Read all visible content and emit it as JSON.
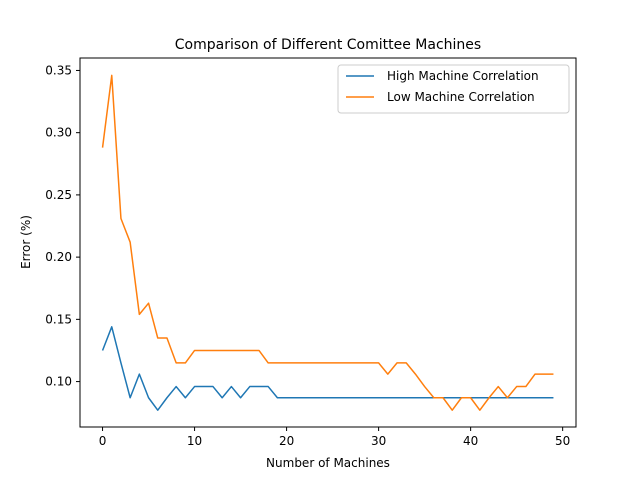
{
  "chart_data": {
    "type": "line",
    "title": "Comparison of Different Comittee Machines",
    "xlabel": "Number of Machines",
    "ylabel": "Error (%)",
    "xlim": [
      -2.45,
      51.45
    ],
    "ylim": [
      0.0635,
      0.36
    ],
    "xticks": [
      0,
      10,
      20,
      30,
      40,
      50
    ],
    "xtick_labels": [
      "0",
      "10",
      "20",
      "30",
      "40",
      "50"
    ],
    "yticks": [
      0.1,
      0.15,
      0.2,
      0.25,
      0.3,
      0.35
    ],
    "ytick_labels": [
      "0.10",
      "0.15",
      "0.20",
      "0.25",
      "0.30",
      "0.35"
    ],
    "legend_position": "top-right",
    "grid": false,
    "x": [
      0,
      1,
      2,
      3,
      4,
      5,
      6,
      7,
      8,
      9,
      10,
      11,
      12,
      13,
      14,
      15,
      16,
      17,
      18,
      19,
      20,
      21,
      22,
      23,
      24,
      25,
      26,
      27,
      28,
      29,
      30,
      31,
      32,
      33,
      34,
      35,
      36,
      37,
      38,
      39,
      40,
      41,
      42,
      43,
      44,
      45,
      46,
      47,
      48,
      49
    ],
    "series": [
      {
        "name": "High Machine Correlation",
        "color": "#1f77b4",
        "values": [
          0.125,
          0.144,
          0.115,
          0.087,
          0.106,
          0.087,
          0.077,
          0.087,
          0.096,
          0.087,
          0.096,
          0.096,
          0.096,
          0.087,
          0.096,
          0.087,
          0.096,
          0.096,
          0.096,
          0.087,
          0.087,
          0.087,
          0.087,
          0.087,
          0.087,
          0.087,
          0.087,
          0.087,
          0.087,
          0.087,
          0.087,
          0.087,
          0.087,
          0.087,
          0.087,
          0.087,
          0.087,
          0.087,
          0.087,
          0.087,
          0.087,
          0.087,
          0.087,
          0.087,
          0.087,
          0.087,
          0.087,
          0.087,
          0.087,
          0.087
        ]
      },
      {
        "name": "Low Machine Correlation",
        "color": "#ff7f0e",
        "values": [
          0.288,
          0.346,
          0.231,
          0.212,
          0.154,
          0.163,
          0.135,
          0.135,
          0.115,
          0.115,
          0.125,
          0.125,
          0.125,
          0.125,
          0.125,
          0.125,
          0.125,
          0.125,
          0.115,
          0.115,
          0.115,
          0.115,
          0.115,
          0.115,
          0.115,
          0.115,
          0.115,
          0.115,
          0.115,
          0.115,
          0.115,
          0.106,
          0.115,
          0.115,
          0.106,
          0.096,
          0.087,
          0.087,
          0.077,
          0.087,
          0.087,
          0.077,
          0.087,
          0.096,
          0.087,
          0.096,
          0.096,
          0.106,
          0.106,
          0.106
        ]
      }
    ]
  }
}
